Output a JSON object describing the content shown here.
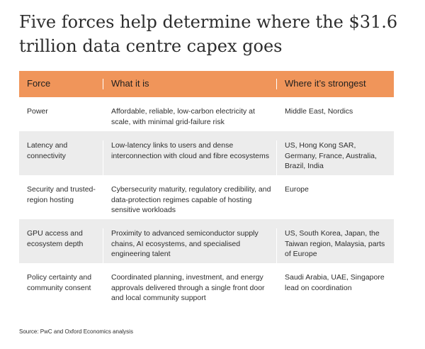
{
  "title": "Five forces help determine where the $31.6 trillion data centre capex goes",
  "headers": [
    "Force",
    "What it is",
    "Where it’s strongest"
  ],
  "rows": [
    {
      "force": "Power",
      "what": "Affordable, reliable, low-carbon electricity at scale, with minimal grid-failure risk",
      "where": "Middle East, Nordics"
    },
    {
      "force": "Latency and connectivity",
      "what": "Low-latency links to users and dense interconnection with cloud and fibre ecosystems",
      "where": "US, Hong Kong SAR, Germany, France, Australia, Brazil, India"
    },
    {
      "force": "Security and trusted-region hosting",
      "what": "Cybersecurity maturity, regulatory credibility, and data-protection regimes capable of hosting sensitive workloads",
      "where": "Europe"
    },
    {
      "force": "GPU access and ecosystem depth",
      "what": "Proximity to advanced semiconductor supply chains, AI ecosystems, and specialised engineering talent",
      "where": "US, South Korea, Japan, the Taiwan region, Malaysia, parts of Europe"
    },
    {
      "force": "Policy certainty and community consent",
      "what": "Coordinated planning, investment, and energy approvals delivered through a single front door and local community support",
      "where": "Saudi Arabia, UAE, Singapore lead on coordination"
    }
  ],
  "source": "Source: PwC and Oxford Economics analysis",
  "colors": {
    "header_bg": "#f0955a",
    "stripe_bg": "#ececec",
    "text": "#2d2d2d"
  }
}
